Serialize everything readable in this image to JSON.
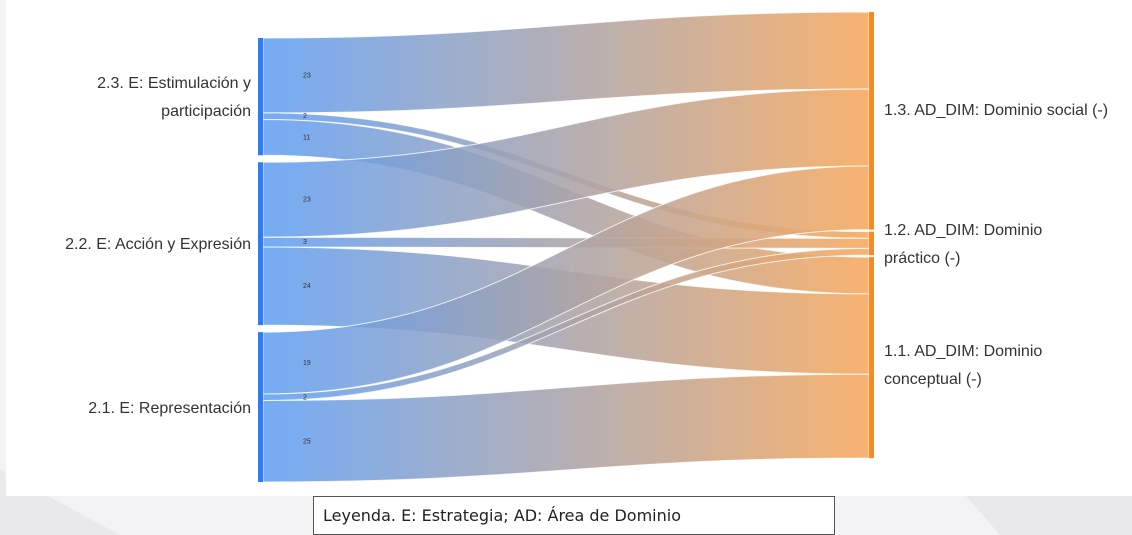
{
  "colors": {
    "source": "#5b9df5",
    "source_bar": "#2d7cf0",
    "target": "#f7aa60",
    "target_bar": "#f58a2a",
    "text": "#333333"
  },
  "nodes": {
    "sources": [
      {
        "id": "s23",
        "label": "2.3. E: Estimulación y participación"
      },
      {
        "id": "s22",
        "label": "2.2. E: Acción y Expresión"
      },
      {
        "id": "s21",
        "label": "2.1. E: Representación"
      }
    ],
    "targets": [
      {
        "id": "t13",
        "label": "1.3. AD_DIM: Dominio social (-)"
      },
      {
        "id": "t12",
        "label": "1.2. AD_DIM: Dominio práctico (-)"
      },
      {
        "id": "t11",
        "label": "1.1. AD_DIM: Dominio conceptual (-)"
      }
    ]
  },
  "links": [
    {
      "source": "s23",
      "target": "t13",
      "value": 23,
      "label": "23"
    },
    {
      "source": "s23",
      "target": "t12",
      "value": 2,
      "label": "2"
    },
    {
      "source": "s23",
      "target": "t11",
      "value": 11,
      "label": "11"
    },
    {
      "source": "s22",
      "target": "t13",
      "value": 23,
      "label": "23"
    },
    {
      "source": "s22",
      "target": "t12",
      "value": 3,
      "label": "3"
    },
    {
      "source": "s22",
      "target": "t11",
      "value": 24,
      "label": "24"
    },
    {
      "source": "s21",
      "target": "t13",
      "value": 19,
      "label": "19"
    },
    {
      "source": "s21",
      "target": "t12",
      "value": 2,
      "label": "2"
    },
    {
      "source": "s21",
      "target": "t11",
      "value": 25,
      "label": "25"
    }
  ],
  "legend": "Leyenda. E: Estrategia; AD: Área de Dominio"
}
